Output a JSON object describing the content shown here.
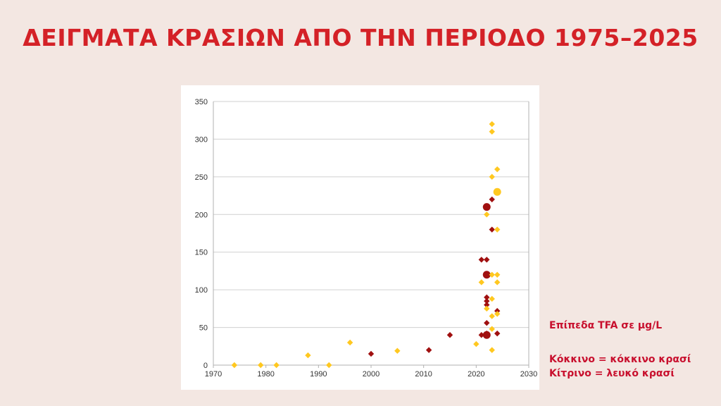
{
  "page": {
    "title": "ΔΕΙΓΜΑΤΑ ΚΡΑΣΙΩΝ ΑΠΟ ΤΗΝ ΠΕΡΙΟΔΟ 1975–2025"
  },
  "notes": {
    "unit_label": "Επίπεδα TFA σε μg/L",
    "legend_red": "Κόκκινο = κόκκινο κρασί",
    "legend_white": "Κίτρινο = λευκό κρασί"
  },
  "colors": {
    "title": "#d42127",
    "red_wine": "#a01010",
    "white_wine": "#ffc820",
    "grid": "#d0d0d0",
    "background": "#f3e7e2"
  },
  "chart_data": {
    "type": "scatter",
    "title": "",
    "xlabel": "",
    "ylabel": "",
    "xlim": [
      1970,
      2030
    ],
    "ylim": [
      0,
      350
    ],
    "x_ticks": [
      1970,
      1980,
      1990,
      2000,
      2010,
      2020,
      2030
    ],
    "y_ticks": [
      0,
      50,
      100,
      150,
      200,
      250,
      300,
      350
    ],
    "grid": "horizontal",
    "series": [
      {
        "key": "red",
        "points": [
          {
            "x": 2000,
            "y": 15
          },
          {
            "x": 2011,
            "y": 20
          },
          {
            "x": 2015,
            "y": 40
          },
          {
            "x": 2021,
            "y": 140
          },
          {
            "x": 2022,
            "y": 140
          },
          {
            "x": 2021,
            "y": 40
          },
          {
            "x": 2022,
            "y": 90
          },
          {
            "x": 2022,
            "y": 85
          },
          {
            "x": 2022,
            "y": 80
          },
          {
            "x": 2022,
            "y": 56
          },
          {
            "x": 2022,
            "y": 42
          },
          {
            "x": 2023,
            "y": 220
          },
          {
            "x": 2023,
            "y": 180
          },
          {
            "x": 2024,
            "y": 72
          },
          {
            "x": 2024,
            "y": 42
          },
          {
            "x": 2022,
            "y": 210,
            "big": true
          },
          {
            "x": 2022,
            "y": 120,
            "big": true
          },
          {
            "x": 2022,
            "y": 40,
            "big": true
          }
        ]
      },
      {
        "key": "white",
        "points": [
          {
            "x": 1974,
            "y": 0
          },
          {
            "x": 1979,
            "y": 0
          },
          {
            "x": 1982,
            "y": 0
          },
          {
            "x": 1988,
            "y": 13
          },
          {
            "x": 1992,
            "y": 0
          },
          {
            "x": 1996,
            "y": 30
          },
          {
            "x": 2005,
            "y": 19
          },
          {
            "x": 2020,
            "y": 28
          },
          {
            "x": 2021,
            "y": 110
          },
          {
            "x": 2022,
            "y": 200
          },
          {
            "x": 2022,
            "y": 75
          },
          {
            "x": 2023,
            "y": 320
          },
          {
            "x": 2023,
            "y": 310
          },
          {
            "x": 2023,
            "y": 250
          },
          {
            "x": 2023,
            "y": 120
          },
          {
            "x": 2023,
            "y": 88
          },
          {
            "x": 2023,
            "y": 65
          },
          {
            "x": 2023,
            "y": 48
          },
          {
            "x": 2023,
            "y": 20
          },
          {
            "x": 2024,
            "y": 260
          },
          {
            "x": 2024,
            "y": 180
          },
          {
            "x": 2024,
            "y": 120
          },
          {
            "x": 2024,
            "y": 110
          },
          {
            "x": 2024,
            "y": 68
          },
          {
            "x": 2024,
            "y": 230,
            "big": true
          }
        ]
      }
    ]
  }
}
